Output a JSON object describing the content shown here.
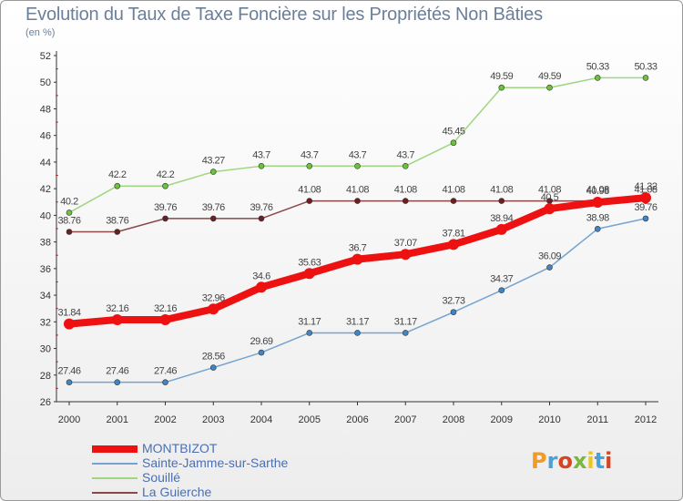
{
  "title": "Evolution du Taux de Taxe Foncière sur les Propriétés Non Bâties",
  "subtitle": "(en %)",
  "logo": {
    "text": "Proxiti",
    "letter_colors": [
      "#f39a22",
      "#4aa1d8",
      "#d9431f",
      "#7ab83d",
      "#f0c419",
      "#4aa1d8",
      "#d9431f"
    ]
  },
  "chart_data": {
    "type": "line",
    "x": [
      "2000",
      "2001",
      "2002",
      "2003",
      "2004",
      "2005",
      "2006",
      "2007",
      "2008",
      "2009",
      "2010",
      "2011",
      "2012"
    ],
    "ylim": [
      26,
      52
    ],
    "yticks": [
      26,
      28,
      30,
      32,
      34,
      36,
      38,
      40,
      42,
      44,
      46,
      48,
      50,
      52
    ],
    "grid": false,
    "legend_position": "bottom-left",
    "series": [
      {
        "name": "MONTBIZOT",
        "color": "#ee1111",
        "marker": "#ee1111",
        "width": 8,
        "values": [
          31.84,
          32.16,
          32.16,
          32.96,
          34.6,
          35.63,
          36.7,
          37.07,
          37.81,
          38.94,
          40.5,
          40.98,
          41.32
        ],
        "labels": [
          "31.84",
          "32.16",
          "32.16",
          "32.96",
          "34.6",
          "35.63",
          "36.7",
          "37.07",
          "37.81",
          "38.94",
          "40.5",
          "40.98",
          "41.32"
        ]
      },
      {
        "name": "Sainte-Jamme-sur-Sarthe",
        "color": "#74a3cf",
        "marker": "#3e86c8",
        "width": 1.5,
        "values": [
          27.46,
          27.46,
          27.46,
          28.56,
          29.69,
          31.17,
          31.17,
          31.17,
          32.73,
          34.37,
          36.09,
          38.98,
          39.76
        ],
        "labels": [
          "27.46",
          "27.46",
          "27.46",
          "28.56",
          "29.69",
          "31.17",
          "31.17",
          "31.17",
          "32.73",
          "34.37",
          "36.09",
          "38.98",
          "39.76"
        ]
      },
      {
        "name": "Souillé",
        "color": "#9fd680",
        "marker": "#6cc23a",
        "width": 1.5,
        "values": [
          40.2,
          42.2,
          42.2,
          43.27,
          43.7,
          43.7,
          43.7,
          43.7,
          45.45,
          49.59,
          49.59,
          50.33,
          50.33
        ],
        "labels": [
          "40.2",
          "42.2",
          "42.2",
          "43.27",
          "43.7",
          "43.7",
          "43.7",
          "43.7",
          "45.45",
          "49.59",
          "49.59",
          "50.33",
          "50.33"
        ]
      },
      {
        "name": "La Guierche",
        "color": "#8a4848",
        "marker": "#6b2020",
        "width": 1.5,
        "values": [
          38.76,
          38.76,
          39.76,
          39.76,
          39.76,
          41.08,
          41.08,
          41.08,
          41.08,
          41.08,
          41.08,
          41.08,
          41.08
        ],
        "labels": [
          "38.76",
          "38.76",
          "39.76",
          "39.76",
          "39.76",
          "41.08",
          "41.08",
          "41.08",
          "41.08",
          "41.08",
          "41.08",
          "41.08",
          "41.08"
        ]
      }
    ]
  }
}
